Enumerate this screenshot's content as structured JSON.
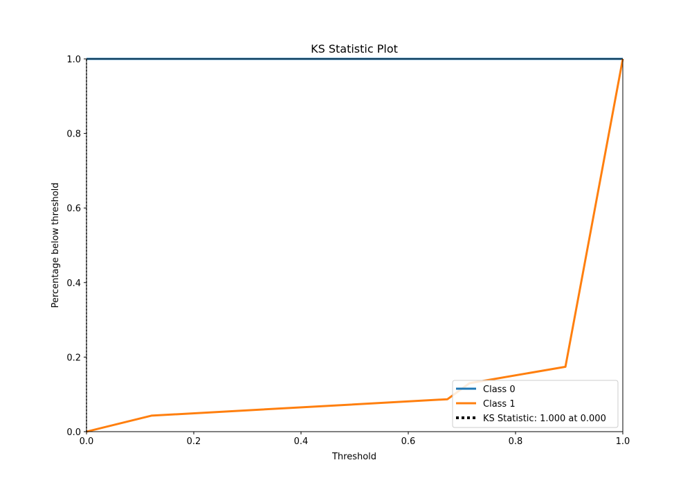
{
  "chart_data": {
    "type": "line",
    "title": "KS Statistic Plot",
    "xlabel": "Threshold",
    "ylabel": "Percentage below threshold",
    "xlim": [
      0.0,
      1.0
    ],
    "ylim": [
      0.0,
      1.0
    ],
    "x_ticks": [
      "0.0",
      "0.2",
      "0.4",
      "0.6",
      "0.8",
      "1.0"
    ],
    "y_ticks": [
      "0.0",
      "0.2",
      "0.4",
      "0.6",
      "0.8",
      "1.0"
    ],
    "grid": false,
    "legend_position": "lower-right",
    "series": [
      {
        "name": "Class 0",
        "color": "#1f77b4",
        "style": "solid",
        "points": [
          [
            0.0,
            1.0
          ],
          [
            1.0,
            1.0
          ]
        ]
      },
      {
        "name": "Class 1",
        "color": "#ff7f0e",
        "style": "solid",
        "points": [
          [
            0.0,
            0.0
          ],
          [
            0.121,
            0.043
          ],
          [
            0.673,
            0.087
          ],
          [
            0.714,
            0.13
          ],
          [
            0.893,
            0.174
          ],
          [
            1.0,
            1.0
          ]
        ]
      },
      {
        "name": "KS Statistic: 1.000 at 0.000",
        "color": "#000000",
        "style": "dotted",
        "points": [
          [
            0.0,
            0.0
          ],
          [
            0.0,
            1.0
          ]
        ]
      }
    ]
  }
}
